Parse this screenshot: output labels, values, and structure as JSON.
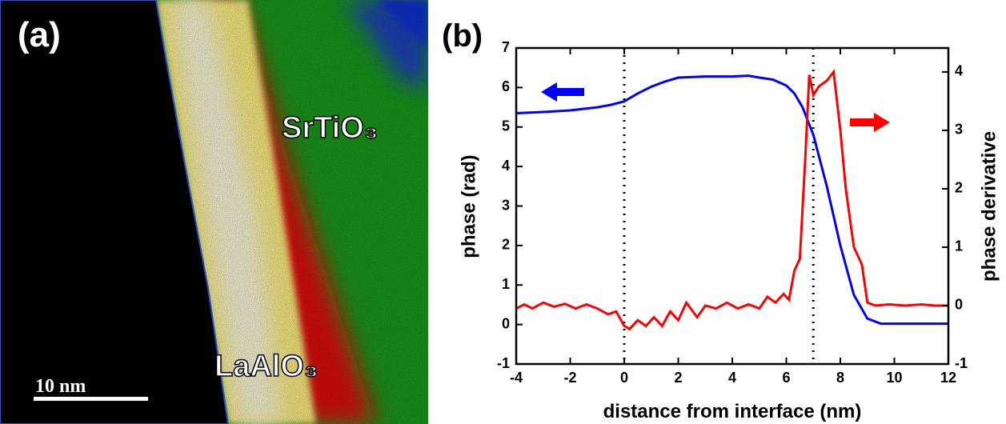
{
  "panel_a": {
    "label": "(a)",
    "annotations": [
      "SrTiO₃",
      "LaAlO₃"
    ],
    "scale_bar": "10 nm"
  },
  "chart_data": {
    "type": "line",
    "label": "(b)",
    "x_label": "distance from interface (nm)",
    "y_label": "phase (rad)",
    "y2_label": "phase derivative",
    "xlim": [
      -4,
      12
    ],
    "xticks": [
      -4,
      -2,
      0,
      2,
      4,
      6,
      8,
      10,
      12
    ],
    "ylim": [
      -1,
      7
    ],
    "yticks": [
      -1,
      0,
      1,
      2,
      3,
      4,
      5,
      6,
      7
    ],
    "y2lim": [
      -1,
      4.41
    ],
    "y2ticks": [
      -1,
      0,
      1,
      2,
      3,
      4
    ],
    "vlines": [
      0,
      7
    ],
    "series": [
      {
        "color": "#0000ff",
        "x": [
          -4,
          -3,
          -2,
          -1,
          -0.5,
          0,
          0.5,
          1,
          1.5,
          2,
          3,
          4,
          4.6,
          5,
          5.5,
          6,
          6.3,
          6.6,
          7,
          7.5,
          8,
          8.5,
          9,
          9.5,
          10,
          12
        ],
        "values": [
          5.35,
          5.38,
          5.42,
          5.5,
          5.56,
          5.65,
          5.85,
          6.02,
          6.15,
          6.25,
          6.28,
          6.28,
          6.3,
          6.25,
          6.2,
          6.05,
          5.85,
          5.5,
          4.8,
          3.5,
          2.0,
          0.75,
          0.15,
          0.02,
          0.02,
          0.02
        ]
      },
      {
        "color": "#ff0000",
        "axis": "y2",
        "x": [
          -4,
          -3.7,
          -3.4,
          -3,
          -2.6,
          -2.2,
          -1.8,
          -1.4,
          -1,
          -0.6,
          -0.3,
          0,
          0.2,
          0.5,
          0.8,
          1.1,
          1.4,
          1.7,
          2,
          2.3,
          2.7,
          3,
          3.4,
          3.8,
          4.2,
          4.6,
          5,
          5.3,
          5.6,
          5.9,
          6.1,
          6.3,
          6.5,
          6.7,
          6.85,
          7,
          7.2,
          7.5,
          7.75,
          8,
          8.2,
          8.5,
          8.8,
          9,
          9.3,
          9.8,
          10.4,
          11,
          11.5,
          12
        ],
        "values": [
          -0.05,
          0.02,
          -0.05,
          0.05,
          -0.02,
          0.03,
          -0.05,
          0.02,
          -0.05,
          -0.15,
          -0.1,
          -0.35,
          -0.4,
          -0.25,
          -0.35,
          -0.2,
          -0.35,
          -0.1,
          -0.25,
          0.05,
          -0.2,
          0.0,
          -0.05,
          0.05,
          -0.05,
          0.02,
          -0.05,
          0.15,
          0.05,
          0.2,
          0.1,
          0.6,
          0.8,
          2.5,
          3.95,
          3.6,
          3.75,
          3.85,
          4.0,
          3.0,
          2.0,
          1.0,
          0.7,
          0.05,
          0.0,
          0.02,
          0.0,
          0.02,
          0.0,
          0.0
        ]
      }
    ]
  }
}
